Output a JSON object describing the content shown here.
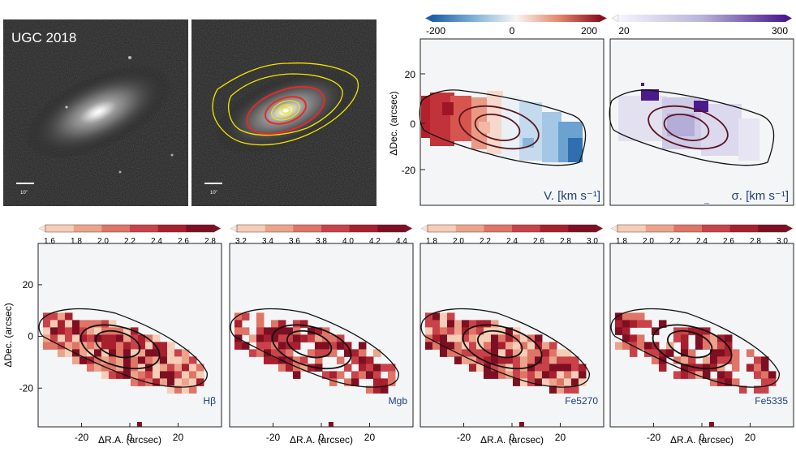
{
  "images": {
    "galaxy_label": "UGC 2018",
    "scale_bar_left": "10\"",
    "scale_bar_right": "10\""
  },
  "colors": {
    "panel_bg": "#f4f5f6",
    "contour_yellow": "#f2e600",
    "contour_red": "#e8282a",
    "ellipse_dark": "#5a1420",
    "ellipse_black": "#111111",
    "label_blue": "#1e3f7a"
  },
  "kinematics": {
    "velocity": {
      "label": "V. [km s⁻¹]",
      "colorbar": {
        "ticks": [
          "-200",
          "0",
          "200"
        ],
        "range": [
          -200,
          200
        ]
      }
    },
    "dispersion": {
      "label": "σ. [km s⁻¹]",
      "colorbar": {
        "ticks": [
          "20",
          "300"
        ],
        "range": [
          20,
          300
        ]
      }
    }
  },
  "axes": {
    "xlabel": "ΔR.A. (arcsec)",
    "ylabel": "ΔDec. (arcsec)",
    "x_ticks": [
      "-20",
      "0",
      "20"
    ],
    "y_ticks": [
      "20",
      "0",
      "-20"
    ],
    "x_range": [
      -38,
      38
    ],
    "y_range": [
      -35,
      36
    ]
  },
  "chart_data": [
    {
      "type": "heatmap",
      "title": "V. [km s⁻¹]",
      "colorbar_ticks": [
        "-200",
        "0",
        "200"
      ],
      "range": [
        -200,
        200
      ]
    },
    {
      "type": "heatmap",
      "title": "σ. [km s⁻¹]",
      "colorbar_ticks": [
        "20",
        "300"
      ],
      "range": [
        20,
        300
      ]
    },
    {
      "type": "heatmap",
      "title": "Hβ",
      "colorbar_ticks": [
        "1.6",
        "1.8",
        "2.0",
        "2.2",
        "2.4",
        "2.6",
        "2.8"
      ],
      "range": [
        1.6,
        2.8
      ]
    },
    {
      "type": "heatmap",
      "title": "Mgb",
      "colorbar_ticks": [
        "3.2",
        "3.4",
        "3.6",
        "3.8",
        "4.0",
        "4.2",
        "4.4"
      ],
      "range": [
        3.2,
        4.4
      ]
    },
    {
      "type": "heatmap",
      "title": "Fe5270",
      "colorbar_ticks": [
        "1.8",
        "2.0",
        "2.2",
        "2.4",
        "2.6",
        "2.8",
        "3.0"
      ],
      "range": [
        1.8,
        3.0
      ]
    },
    {
      "type": "heatmap",
      "title": "Fe5335",
      "colorbar_ticks": [
        "1.8",
        "2.0",
        "2.2",
        "2.4",
        "2.6",
        "2.8",
        "3.0"
      ],
      "range": [
        1.8,
        3.0
      ]
    }
  ],
  "index_panels": [
    {
      "label": "Hβ",
      "ticks": [
        "1.6",
        "1.8",
        "2.0",
        "2.2",
        "2.4",
        "2.6",
        "2.8"
      ]
    },
    {
      "label": "Mgb",
      "ticks": [
        "3.2",
        "3.4",
        "3.6",
        "3.8",
        "4.0",
        "4.2",
        "4.4"
      ]
    },
    {
      "label": "Fe5270",
      "ticks": [
        "1.8",
        "2.0",
        "2.2",
        "2.4",
        "2.6",
        "2.8",
        "3.0"
      ]
    },
    {
      "label": "Fe5335",
      "ticks": [
        "1.8",
        "2.0",
        "2.2",
        "2.4",
        "2.6",
        "2.8",
        "3.0"
      ]
    }
  ]
}
